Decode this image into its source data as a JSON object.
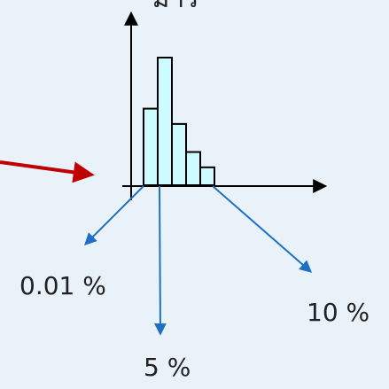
{
  "diagram": {
    "axis_label_top_partial": "มาร",
    "labels": {
      "left": "0.01 %",
      "middle": "5 %",
      "right": "10 %"
    },
    "colors": {
      "background": "#e8f2f8",
      "axis": "#000000",
      "bar_fill": "#ccfcff",
      "bar_stroke": "#000000",
      "pointer_arrow": "#c00000",
      "label_arrows": "#1f6fc5",
      "text": "#222222"
    },
    "bars": [
      {
        "height_ratio": 0.6
      },
      {
        "height_ratio": 1.0
      },
      {
        "height_ratio": 0.48
      },
      {
        "height_ratio": 0.26
      },
      {
        "height_ratio": 0.14
      }
    ]
  }
}
